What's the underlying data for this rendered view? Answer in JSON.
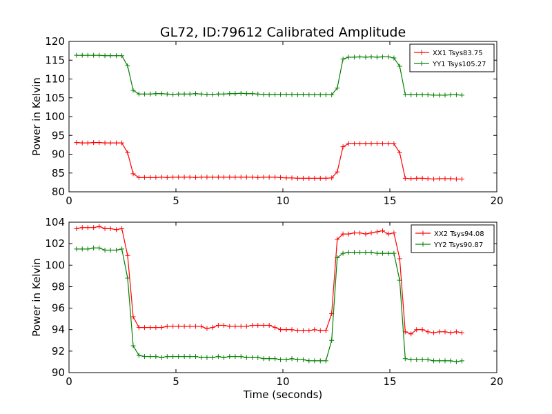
{
  "figure": {
    "title": "GL72, ID:79612 Calibrated Amplitude",
    "xlabel": "Time (seconds)"
  },
  "chart_data": [
    {
      "type": "line",
      "title": "GL72, ID:79612 Calibrated Amplitude",
      "xlabel": "",
      "ylabel": "Power in Kelvin",
      "xlim": [
        0,
        20
      ],
      "ylim": [
        80,
        120
      ],
      "xticks": [
        0,
        5,
        10,
        15,
        20
      ],
      "yticks": [
        80,
        85,
        90,
        95,
        100,
        105,
        110,
        115,
        120
      ],
      "grid": false,
      "legend_position": "top-right",
      "x": [
        0.35,
        0.62,
        0.88,
        1.15,
        1.41,
        1.68,
        1.94,
        2.21,
        2.47,
        2.74,
        3.0,
        3.27,
        3.53,
        3.8,
        4.06,
        4.33,
        4.59,
        4.86,
        5.12,
        5.39,
        5.65,
        5.92,
        6.18,
        6.45,
        6.71,
        6.98,
        7.24,
        7.51,
        7.77,
        8.04,
        8.3,
        8.57,
        8.83,
        9.1,
        9.36,
        9.63,
        9.89,
        10.16,
        10.42,
        10.69,
        10.95,
        11.22,
        11.48,
        11.75,
        12.01,
        12.28,
        12.54,
        12.81,
        13.07,
        13.34,
        13.6,
        13.87,
        14.13,
        14.4,
        14.66,
        14.93,
        15.19,
        15.46,
        15.72,
        15.99,
        16.25,
        16.52,
        16.78,
        17.05,
        17.31,
        17.58,
        17.84,
        18.11,
        18.37
      ],
      "series": [
        {
          "name": "XX1 Tsys83.75",
          "color": "#ff0000",
          "values": [
            93.1,
            93.0,
            93.0,
            93.1,
            93.1,
            93.0,
            93.0,
            93.0,
            93.0,
            90.4,
            84.8,
            83.8,
            83.8,
            83.8,
            83.8,
            83.9,
            83.8,
            83.9,
            83.9,
            83.9,
            83.9,
            83.8,
            83.9,
            83.9,
            83.9,
            83.9,
            83.9,
            83.9,
            83.9,
            83.9,
            83.9,
            83.9,
            83.8,
            83.9,
            83.9,
            83.9,
            83.8,
            83.7,
            83.7,
            83.6,
            83.6,
            83.6,
            83.6,
            83.6,
            83.6,
            83.7,
            85.3,
            92.0,
            92.8,
            92.8,
            92.8,
            92.8,
            92.8,
            92.9,
            92.8,
            92.8,
            92.8,
            90.4,
            83.6,
            83.5,
            83.6,
            83.6,
            83.5,
            83.4,
            83.5,
            83.5,
            83.5,
            83.4,
            83.4
          ]
        },
        {
          "name": "YY1 Tsys105.27",
          "color": "#008000",
          "values": [
            116.3,
            116.3,
            116.3,
            116.3,
            116.3,
            116.2,
            116.2,
            116.2,
            116.2,
            113.5,
            107.0,
            106.0,
            106.0,
            106.0,
            106.1,
            106.1,
            106.0,
            105.9,
            106.0,
            106.0,
            106.0,
            106.1,
            106.0,
            105.9,
            105.9,
            106.0,
            106.0,
            106.1,
            106.1,
            106.2,
            106.1,
            106.1,
            106.0,
            105.9,
            105.8,
            105.9,
            105.9,
            105.9,
            105.9,
            105.8,
            105.9,
            105.8,
            105.8,
            105.8,
            105.8,
            105.8,
            107.6,
            115.3,
            115.8,
            115.8,
            115.9,
            115.8,
            115.9,
            115.8,
            115.9,
            115.9,
            115.6,
            113.4,
            105.9,
            105.8,
            105.8,
            105.8,
            105.8,
            105.7,
            105.7,
            105.7,
            105.8,
            105.8,
            105.7
          ]
        }
      ]
    },
    {
      "type": "line",
      "title": "",
      "xlabel": "Time (seconds)",
      "ylabel": "Power in Kelvin",
      "xlim": [
        0,
        20
      ],
      "ylim": [
        90,
        104
      ],
      "xticks": [
        0,
        5,
        10,
        15,
        20
      ],
      "yticks": [
        90,
        92,
        94,
        96,
        98,
        100,
        102,
        104
      ],
      "grid": false,
      "legend_position": "top-right",
      "x": [
        0.35,
        0.62,
        0.88,
        1.15,
        1.41,
        1.68,
        1.94,
        2.21,
        2.47,
        2.74,
        3.0,
        3.27,
        3.53,
        3.8,
        4.06,
        4.33,
        4.59,
        4.86,
        5.12,
        5.39,
        5.65,
        5.92,
        6.18,
        6.45,
        6.71,
        6.98,
        7.24,
        7.51,
        7.77,
        8.04,
        8.3,
        8.57,
        8.83,
        9.1,
        9.36,
        9.63,
        9.89,
        10.16,
        10.42,
        10.69,
        10.95,
        11.22,
        11.48,
        11.75,
        12.01,
        12.28,
        12.54,
        12.81,
        13.07,
        13.34,
        13.6,
        13.87,
        14.13,
        14.4,
        14.66,
        14.93,
        15.19,
        15.46,
        15.72,
        15.99,
        16.25,
        16.52,
        16.78,
        17.05,
        17.31,
        17.58,
        17.84,
        18.11,
        18.37
      ],
      "series": [
        {
          "name": "XX2 Tsys94.08",
          "color": "#ff0000",
          "values": [
            103.4,
            103.5,
            103.5,
            103.5,
            103.6,
            103.4,
            103.4,
            103.3,
            103.4,
            100.9,
            95.2,
            94.2,
            94.2,
            94.2,
            94.2,
            94.2,
            94.3,
            94.3,
            94.3,
            94.3,
            94.3,
            94.3,
            94.3,
            94.1,
            94.2,
            94.4,
            94.4,
            94.3,
            94.3,
            94.3,
            94.3,
            94.4,
            94.4,
            94.4,
            94.4,
            94.2,
            94.0,
            94.0,
            94.0,
            93.9,
            93.9,
            93.9,
            94.0,
            93.9,
            93.9,
            95.5,
            102.4,
            102.9,
            102.9,
            103.0,
            103.0,
            102.9,
            103.0,
            103.1,
            103.2,
            102.9,
            103.0,
            100.6,
            93.8,
            93.6,
            94.0,
            94.0,
            93.8,
            93.7,
            93.8,
            93.8,
            93.7,
            93.8,
            93.7
          ]
        },
        {
          "name": "YY2 Tsys90.87",
          "color": "#008000",
          "values": [
            101.5,
            101.5,
            101.5,
            101.6,
            101.6,
            101.4,
            101.4,
            101.4,
            101.5,
            98.8,
            92.5,
            91.6,
            91.5,
            91.5,
            91.5,
            91.4,
            91.5,
            91.5,
            91.5,
            91.5,
            91.5,
            91.5,
            91.4,
            91.4,
            91.4,
            91.5,
            91.4,
            91.5,
            91.5,
            91.5,
            91.4,
            91.4,
            91.4,
            91.3,
            91.3,
            91.3,
            91.2,
            91.2,
            91.3,
            91.2,
            91.2,
            91.1,
            91.1,
            91.1,
            91.1,
            93.0,
            100.7,
            101.1,
            101.2,
            101.2,
            101.2,
            101.2,
            101.2,
            101.1,
            101.1,
            101.1,
            101.1,
            98.6,
            91.3,
            91.2,
            91.2,
            91.2,
            91.2,
            91.1,
            91.1,
            91.1,
            91.1,
            91.0,
            91.1
          ]
        }
      ]
    }
  ]
}
